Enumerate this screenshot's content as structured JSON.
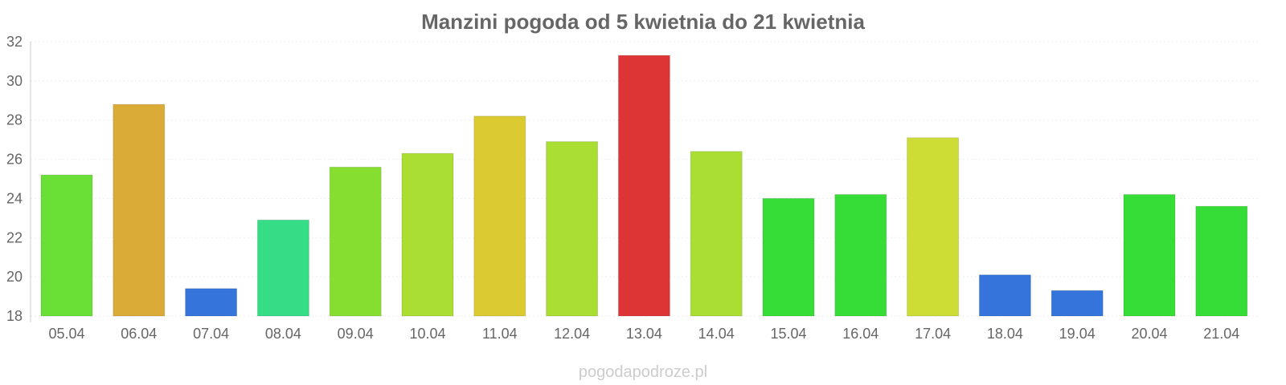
{
  "chart_data": {
    "type": "bar",
    "title": "Manzini pogoda od 5 kwietnia do 21 kwietnia",
    "xlabel": "",
    "ylabel": "",
    "ylim": [
      18,
      32
    ],
    "yticks": [
      18,
      20,
      22,
      24,
      26,
      28,
      30,
      32
    ],
    "grid": true,
    "categories": [
      "05.04",
      "06.04",
      "07.04",
      "08.04",
      "09.04",
      "10.04",
      "11.04",
      "12.04",
      "13.04",
      "14.04",
      "15.04",
      "16.04",
      "17.04",
      "18.04",
      "19.04",
      "20.04",
      "21.04"
    ],
    "values": [
      25.2,
      28.8,
      19.4,
      22.9,
      25.6,
      26.3,
      28.2,
      26.9,
      31.3,
      26.4,
      24.0,
      24.2,
      27.1,
      20.1,
      19.3,
      24.2,
      23.6
    ],
    "colors": [
      "#6adf35",
      "#dbab37",
      "#3474db",
      "#35dd86",
      "#86df30",
      "#aade32",
      "#dcca32",
      "#aade32",
      "#dd3535",
      "#aade32",
      "#36dd36",
      "#36dd36",
      "#cddd35",
      "#3474db",
      "#3474db",
      "#36dd36",
      "#36dd36"
    ]
  },
  "footer": "pogodapodroze.pl"
}
